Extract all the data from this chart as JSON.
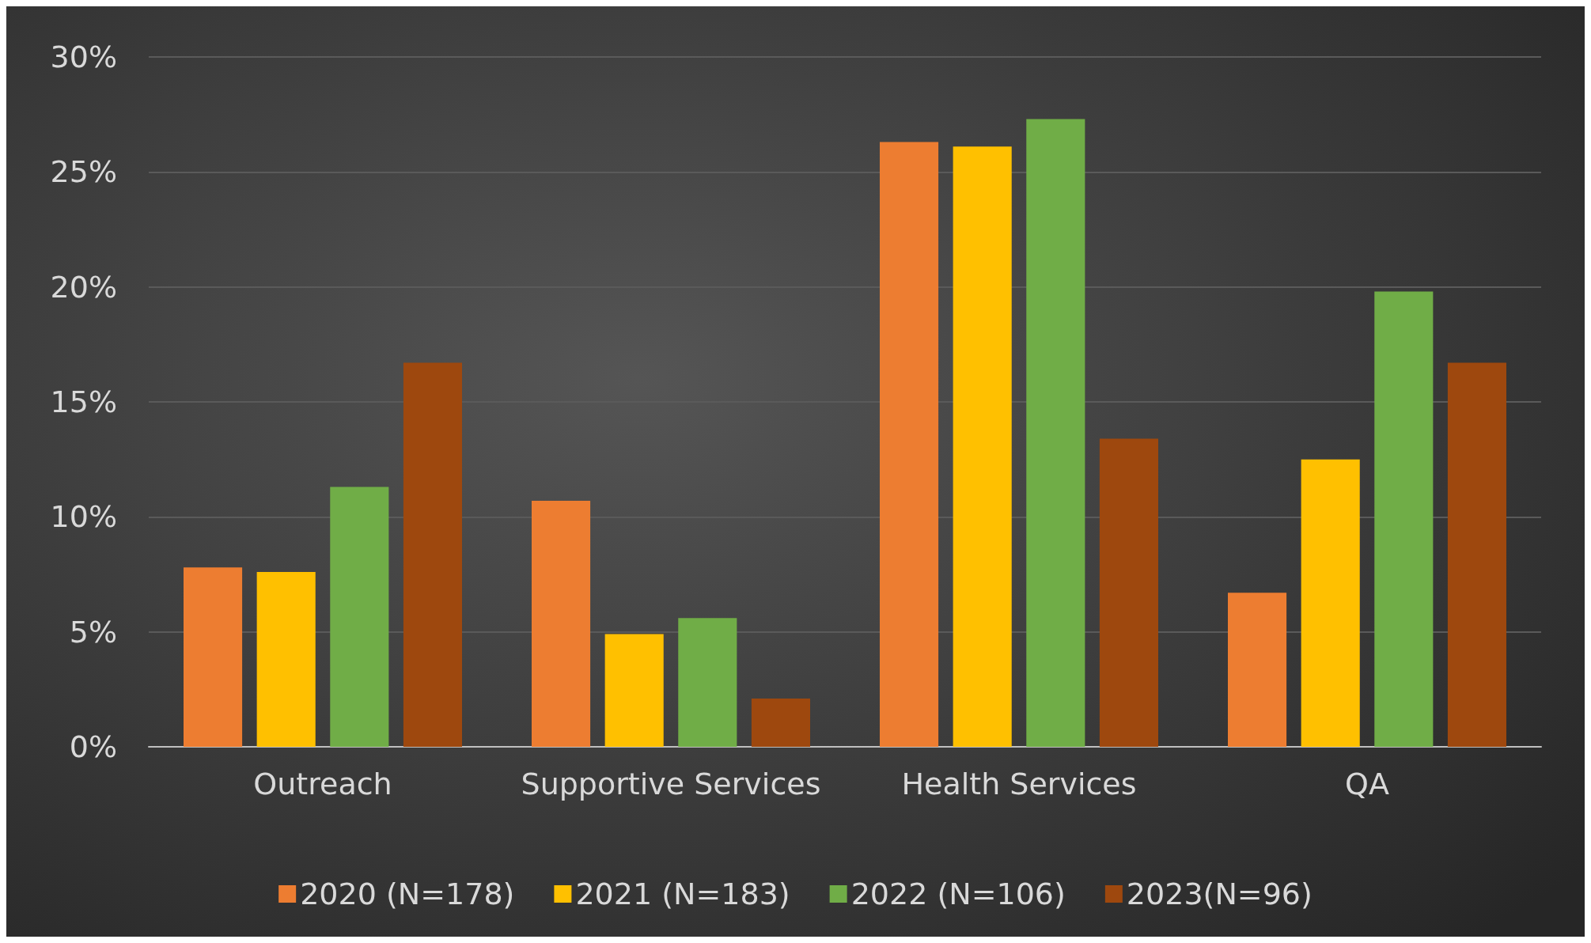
{
  "chart_data": {
    "type": "bar",
    "categories": [
      "Outreach",
      "Supportive Services",
      "Health Services",
      "QA"
    ],
    "series": [
      {
        "name": "2020 (N=178)",
        "color": "#ed7d31",
        "values": [
          7.8,
          10.7,
          26.3,
          6.7
        ]
      },
      {
        "name": "2021 (N=183)",
        "color": "#ffc000",
        "values": [
          7.6,
          4.9,
          26.1,
          12.5
        ]
      },
      {
        "name": "2022 (N=106)",
        "color": "#70ad47",
        "values": [
          11.3,
          5.6,
          27.3,
          19.8
        ]
      },
      {
        "name": "2023(N=96)",
        "color": "#9e480e",
        "values": [
          16.7,
          2.1,
          13.4,
          16.7
        ]
      }
    ],
    "ylim": [
      0,
      30
    ],
    "yticks": [
      {
        "value": 0,
        "label": "0%"
      },
      {
        "value": 5,
        "label": "5%"
      },
      {
        "value": 10,
        "label": "10%"
      },
      {
        "value": 15,
        "label": "15%"
      },
      {
        "value": 20,
        "label": "20%"
      },
      {
        "value": 25,
        "label": "25%"
      },
      {
        "value": 30,
        "label": "30%"
      }
    ],
    "grid": "y",
    "legend": "bottom"
  }
}
